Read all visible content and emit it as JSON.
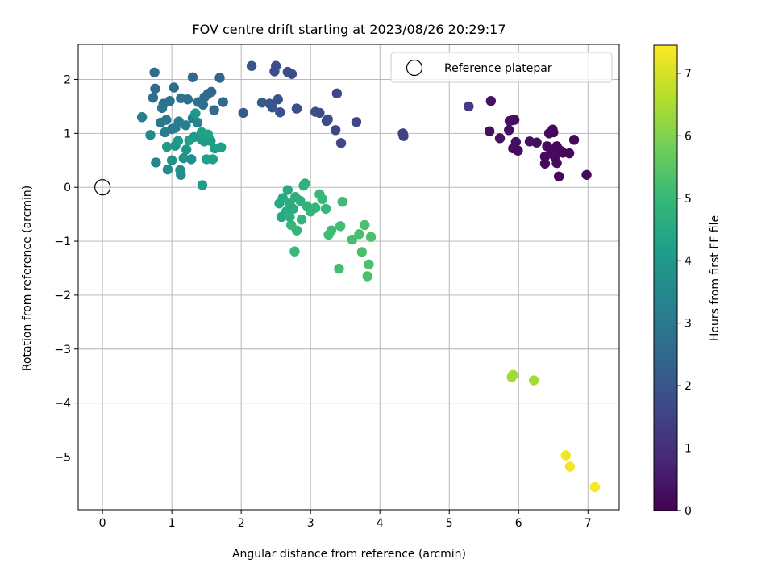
{
  "chart_data": {
    "type": "scatter",
    "title": "FOV centre drift starting at 2023/08/26 20:29:17",
    "xlabel": "Angular distance from reference (arcmin)",
    "ylabel": "Rotation from reference (arcmin)",
    "xlim": [
      -0.35,
      7.45
    ],
    "ylim": [
      -5.98,
      2.65
    ],
    "xticks": [
      0,
      1,
      2,
      3,
      4,
      5,
      6,
      7
    ],
    "yticks": [
      2,
      1,
      0,
      -1,
      -2,
      -3,
      -4,
      -5
    ],
    "xtick_labels": [
      "0",
      "1",
      "2",
      "3",
      "4",
      "5",
      "6",
      "7"
    ],
    "ytick_labels": [
      "2",
      "1",
      "0",
      "−1",
      "−2",
      "−3",
      "−4",
      "−5"
    ],
    "grid": true,
    "legend_position": "top-right",
    "legend": {
      "label": "Reference platepar"
    },
    "reference_point": {
      "x": 0,
      "y": 0
    },
    "colorbar": {
      "label": "Hours from first FF file",
      "colormap": "viridis",
      "range": [
        0,
        7.45
      ],
      "ticks": [
        0,
        1,
        2,
        3,
        4,
        5,
        6,
        7
      ],
      "tick_labels": [
        "0",
        "1",
        "2",
        "3",
        "4",
        "5",
        "6",
        "7"
      ]
    },
    "series": [
      {
        "points": [
          [
            5.6,
            1.6
          ],
          [
            5.58,
            1.04
          ],
          [
            5.73,
            0.91
          ],
          [
            5.86,
            1.06
          ],
          [
            5.87,
            1.23
          ],
          [
            5.9,
            1.24
          ],
          [
            5.94,
            1.25
          ],
          [
            5.92,
            0.72
          ],
          [
            5.96,
            0.84
          ],
          [
            5.99,
            0.68
          ],
          [
            6.16,
            0.85
          ],
          [
            6.26,
            0.83
          ],
          [
            6.38,
            0.57
          ],
          [
            6.38,
            0.44
          ],
          [
            6.44,
            1.0
          ],
          [
            6.5,
            1.02
          ],
          [
            6.49,
            1.07
          ],
          [
            6.41,
            0.76
          ],
          [
            6.55,
            0.76
          ],
          [
            6.52,
            0.57
          ],
          [
            6.55,
            0.45
          ],
          [
            6.58,
            0.2
          ],
          [
            6.64,
            0.64
          ],
          [
            6.73,
            0.63
          ],
          [
            6.8,
            0.88
          ],
          [
            6.98,
            0.23
          ],
          [
            6.47,
            0.68
          ],
          [
            6.6,
            0.68
          ]
        ],
        "hours": [
          0.35,
          0.3,
          0.35,
          0.3,
          0.3,
          0.25,
          0.25,
          0.25,
          0.3,
          0.25,
          0.3,
          0.3,
          0.2,
          0.2,
          0.2,
          0.15,
          0.2,
          0.2,
          0.15,
          0.2,
          0.15,
          0.15,
          0.15,
          0.15,
          0.15,
          0.15,
          0.2,
          0.15
        ]
      },
      {
        "points": [
          [
            5.28,
            1.5
          ],
          [
            4.33,
            1.0
          ],
          [
            4.34,
            0.95
          ],
          [
            3.66,
            1.21
          ],
          [
            3.38,
            1.74
          ],
          [
            3.36,
            1.06
          ],
          [
            3.44,
            0.82
          ],
          [
            3.25,
            1.26
          ],
          [
            3.23,
            1.23
          ],
          [
            3.13,
            1.38
          ],
          [
            3.07,
            1.4
          ],
          [
            2.8,
            1.46
          ],
          [
            2.56,
            1.39
          ],
          [
            2.53,
            1.63
          ],
          [
            2.41,
            1.55
          ],
          [
            2.45,
            1.48
          ],
          [
            2.48,
            2.15
          ],
          [
            2.5,
            2.25
          ],
          [
            2.67,
            2.14
          ],
          [
            2.73,
            2.1
          ],
          [
            2.15,
            2.25
          ],
          [
            2.03,
            1.38
          ],
          [
            2.3,
            1.57
          ]
        ],
        "hours": [
          1.35,
          1.45,
          1.45,
          1.6,
          1.6,
          1.6,
          1.6,
          1.7,
          1.7,
          1.7,
          1.8,
          1.85,
          1.9,
          1.9,
          2.0,
          2.0,
          1.85,
          1.85,
          1.8,
          1.8,
          1.95,
          2.1,
          2.1
        ]
      },
      {
        "points": [
          [
            0.75,
            2.13
          ],
          [
            0.76,
            1.83
          ],
          [
            1.03,
            1.85
          ],
          [
            1.3,
            2.04
          ],
          [
            1.69,
            2.03
          ],
          [
            0.73,
            1.66
          ],
          [
            0.88,
            1.55
          ],
          [
            0.97,
            1.6
          ],
          [
            1.13,
            1.65
          ],
          [
            1.23,
            1.63
          ],
          [
            1.38,
            1.58
          ],
          [
            1.47,
            1.67
          ],
          [
            1.52,
            1.73
          ],
          [
            1.57,
            1.77
          ],
          [
            1.74,
            1.58
          ],
          [
            1.61,
            1.43
          ],
          [
            1.45,
            1.53
          ],
          [
            0.86,
            1.47
          ],
          [
            0.84,
            1.2
          ],
          [
            0.92,
            1.25
          ],
          [
            1.0,
            1.08
          ],
          [
            1.05,
            1.1
          ],
          [
            0.9,
            1.02
          ],
          [
            1.1,
            1.22
          ],
          [
            1.2,
            1.15
          ],
          [
            1.3,
            1.28
          ],
          [
            1.37,
            1.2
          ],
          [
            0.57,
            1.3
          ],
          [
            0.69,
            0.97
          ],
          [
            0.77,
            0.46
          ],
          [
            0.94,
            0.33
          ],
          [
            1.12,
            0.32
          ],
          [
            1.13,
            0.23
          ],
          [
            1.28,
            0.52
          ],
          [
            1.0,
            0.5
          ],
          [
            1.17,
            0.54
          ],
          [
            1.21,
            0.7
          ],
          [
            1.05,
            0.77
          ],
          [
            0.93,
            0.75
          ],
          [
            1.09,
            0.86
          ],
          [
            1.32,
            0.93
          ],
          [
            1.44,
            0.92
          ],
          [
            1.47,
            0.85
          ],
          [
            1.56,
            0.86
          ],
          [
            1.62,
            0.72
          ],
          [
            1.71,
            0.74
          ],
          [
            1.59,
            0.52
          ],
          [
            1.5,
            0.52
          ],
          [
            1.43,
            0.88
          ],
          [
            1.34,
            1.37
          ],
          [
            1.43,
            1.02
          ],
          [
            1.44,
            0.04
          ],
          [
            1.25,
            0.87
          ],
          [
            1.52,
            0.98
          ]
        ],
        "hours": [
          2.6,
          2.6,
          2.6,
          2.5,
          2.5,
          2.7,
          2.75,
          2.8,
          2.8,
          2.75,
          2.7,
          2.55,
          2.5,
          2.45,
          2.55,
          2.65,
          2.7,
          2.9,
          3.0,
          3.0,
          3.1,
          3.1,
          3.15,
          3.1,
          3.2,
          3.2,
          3.3,
          3.2,
          3.5,
          3.4,
          3.6,
          3.7,
          3.7,
          3.7,
          3.8,
          3.8,
          3.9,
          3.9,
          3.95,
          4.0,
          4.0,
          4.0,
          4.1,
          4.1,
          4.15,
          4.15,
          4.2,
          4.2,
          4.1,
          4.0,
          4.2,
          4.1,
          4.2,
          4.25
        ]
      },
      {
        "points": [
          [
            2.58,
            -0.55
          ],
          [
            2.6,
            -0.2
          ],
          [
            2.67,
            -0.05
          ],
          [
            2.7,
            -0.3
          ],
          [
            2.75,
            -0.4
          ],
          [
            2.78,
            -0.18
          ],
          [
            2.85,
            -0.25
          ],
          [
            2.9,
            0.03
          ],
          [
            2.92,
            0.07
          ],
          [
            2.87,
            -0.6
          ],
          [
            2.8,
            -0.8
          ],
          [
            2.72,
            -0.7
          ],
          [
            2.77,
            -1.19
          ],
          [
            3.0,
            -0.45
          ],
          [
            3.07,
            -0.38
          ],
          [
            3.13,
            -0.13
          ],
          [
            3.17,
            -0.22
          ],
          [
            3.22,
            -0.4
          ],
          [
            3.3,
            -0.8
          ],
          [
            3.26,
            -0.88
          ],
          [
            3.43,
            -0.72
          ],
          [
            3.46,
            -0.27
          ],
          [
            3.41,
            -1.51
          ],
          [
            3.6,
            -0.97
          ],
          [
            3.7,
            -0.87
          ],
          [
            3.74,
            -1.2
          ],
          [
            3.78,
            -0.7
          ],
          [
            3.82,
            -1.65
          ],
          [
            3.84,
            -1.43
          ],
          [
            3.87,
            -0.92
          ],
          [
            2.65,
            -0.45
          ],
          [
            2.55,
            -0.3
          ],
          [
            2.7,
            -0.55
          ],
          [
            2.95,
            -0.35
          ]
        ],
        "hours": [
          4.4,
          4.5,
          4.5,
          4.6,
          4.6,
          4.7,
          4.7,
          4.8,
          4.8,
          4.9,
          4.9,
          5.0,
          5.0,
          4.9,
          4.9,
          5.0,
          5.0,
          5.0,
          5.1,
          5.1,
          5.1,
          5.1,
          5.2,
          5.2,
          5.25,
          5.25,
          5.3,
          5.3,
          5.3,
          5.3,
          4.6,
          4.5,
          4.7,
          4.8
        ]
      },
      {
        "points": [
          [
            5.9,
            -3.52
          ],
          [
            5.92,
            -3.48
          ],
          [
            6.22,
            -3.58
          ]
        ],
        "hours": [
          6.4,
          6.4,
          6.4
        ]
      },
      {
        "points": [
          [
            6.68,
            -4.97
          ],
          [
            6.74,
            -5.18
          ],
          [
            7.1,
            -5.56
          ]
        ],
        "hours": [
          7.3,
          7.3,
          7.4
        ]
      }
    ]
  }
}
